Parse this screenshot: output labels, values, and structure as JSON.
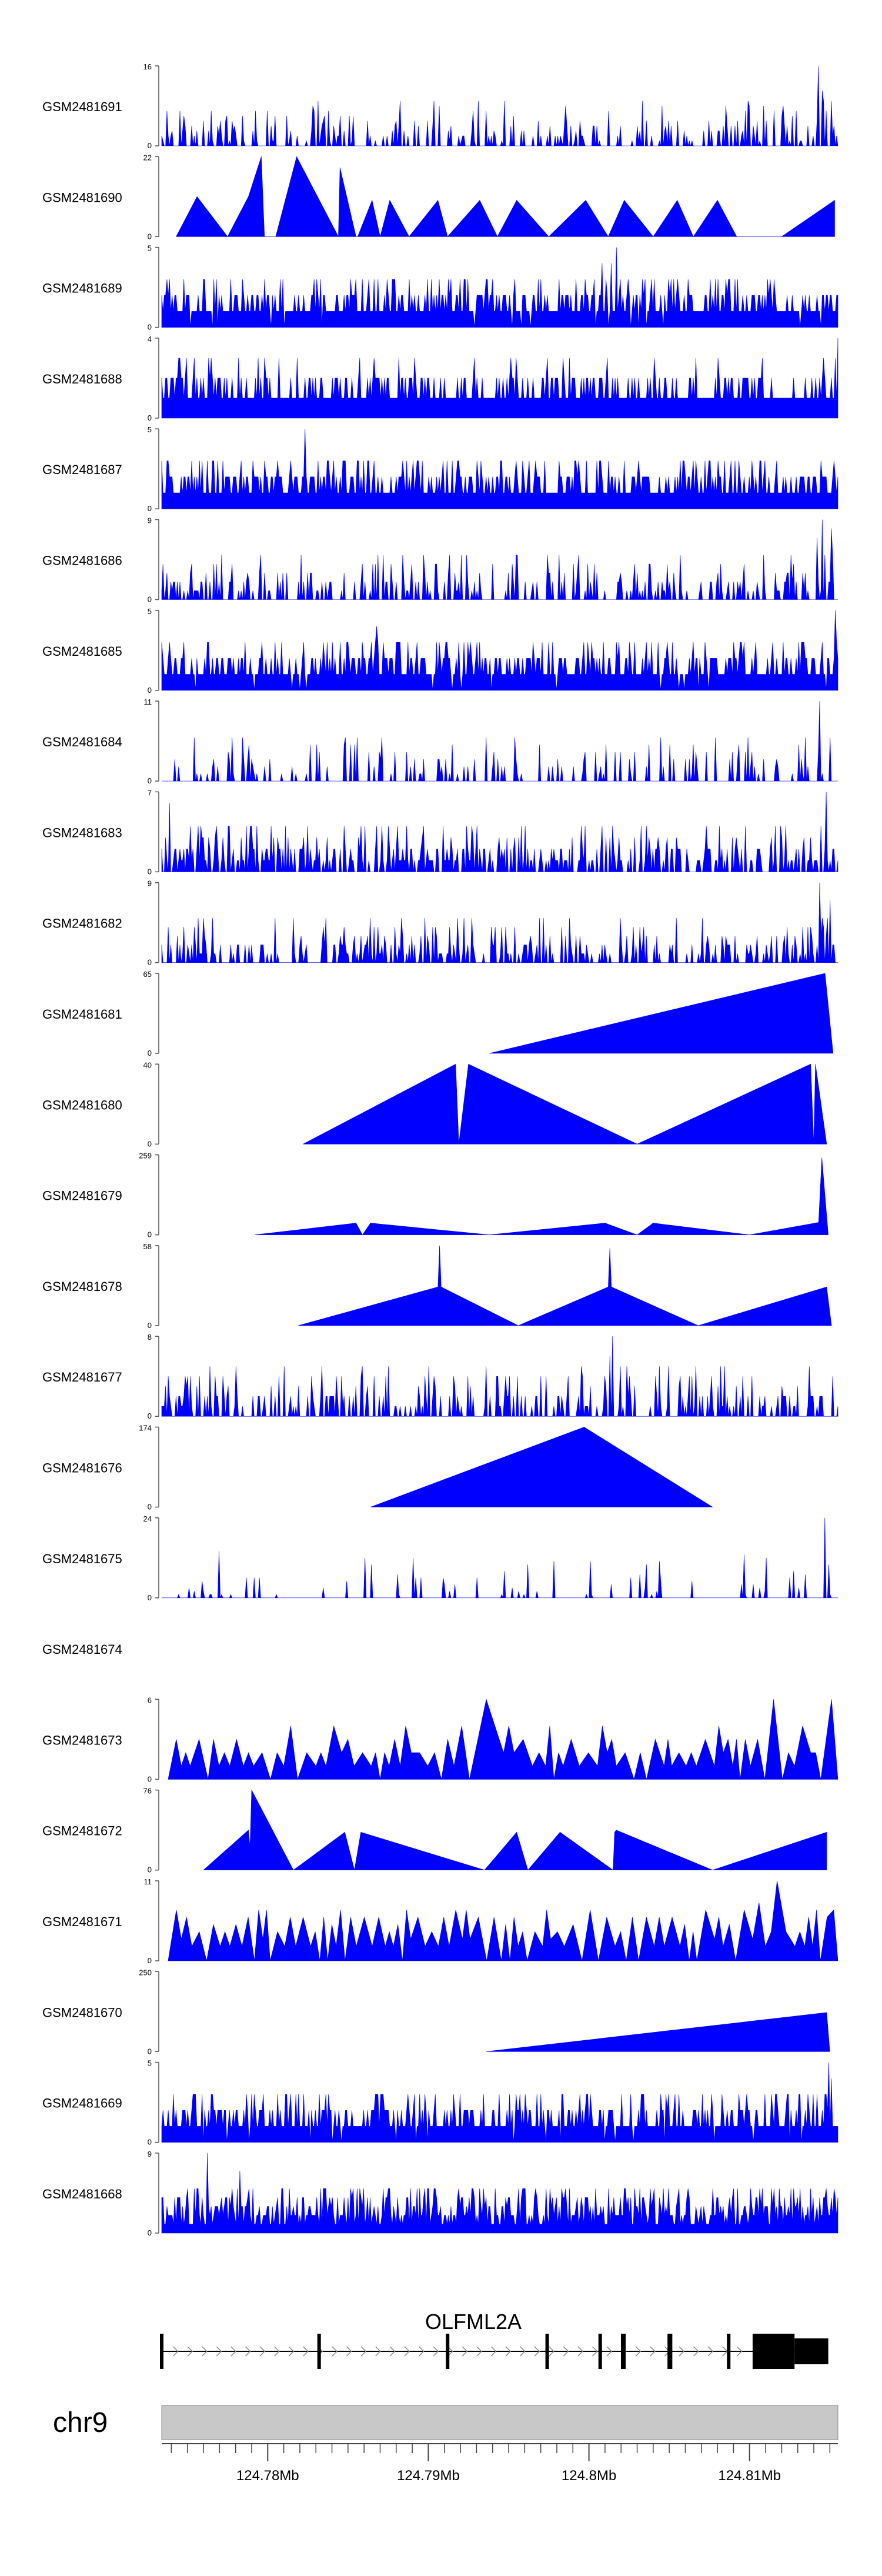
{
  "chart_data": {
    "type": "area",
    "chromosome": "chr9",
    "gene": {
      "name": "OLFML2A",
      "strand": "+",
      "tx_start": 124.7734,
      "tx_end": 124.8149,
      "cds_end": 124.8128,
      "exons": [
        [
          124.7734,
          124.7736
        ],
        [
          124.7832,
          124.7834
        ],
        [
          124.7912,
          124.7914
        ],
        [
          124.7974,
          124.7976
        ],
        [
          124.8007,
          124.8009
        ],
        [
          124.8021,
          124.8024
        ],
        [
          124.805,
          124.8053
        ],
        [
          124.8087,
          124.8089
        ],
        [
          124.8103,
          124.8149
        ]
      ]
    },
    "x_range": [
      124.7734,
      124.8155
    ],
    "x_ticks": [
      124.78,
      124.79,
      124.8,
      124.81
    ],
    "x_tick_labels": [
      "124.78Mb",
      "124.79Mb",
      "124.8Mb",
      "124.81Mb"
    ],
    "tracks": [
      {
        "name": "GSM2481691",
        "ymax": 16,
        "ymin_label": "0",
        "ymax_label": "16",
        "profile": "dense",
        "seed": 11,
        "mean": 0.12,
        "spikes": [
          [
            124.8143,
            16
          ],
          [
            124.8145,
            11
          ],
          [
            124.8146,
            9
          ],
          [
            124.7778,
            5
          ]
        ]
      },
      {
        "name": "GSM2481690",
        "ymax": 22,
        "ymin_label": "0",
        "ymax_label": "22",
        "profile": "sparse",
        "x": [
          124.7743,
          124.7756,
          124.7775,
          124.7788,
          124.7796,
          124.7798,
          124.7805,
          124.7818,
          124.7844,
          124.7845,
          124.7855,
          124.7856,
          124.7865,
          124.787,
          124.7876,
          124.7888,
          124.7906,
          124.7912,
          124.7932,
          124.7943,
          124.7955,
          124.7975,
          124.7998,
          124.8012,
          124.8022,
          124.804,
          124.8055,
          124.8065,
          124.808,
          124.8092,
          124.812,
          124.8153
        ],
        "values": [
          0,
          11,
          0,
          11,
          22,
          0,
          0,
          22,
          0,
          19,
          0,
          0,
          10,
          0,
          10,
          0,
          10,
          0,
          10,
          0,
          10,
          0,
          10,
          0,
          10,
          0,
          10,
          0,
          10,
          0,
          0,
          10
        ]
      },
      {
        "name": "GSM2481689",
        "ymax": 5,
        "ymin_label": "0",
        "ymax_label": "5",
        "profile": "dense",
        "seed": 23,
        "mean": 0.3,
        "spikes": [
          [
            124.8017,
            5
          ],
          [
            124.8008,
            4
          ],
          [
            124.8014,
            4
          ]
        ]
      },
      {
        "name": "GSM2481688",
        "ymax": 4,
        "ymin_label": "0",
        "ymax_label": "4",
        "profile": "dense",
        "seed": 37,
        "mean": 0.35,
        "spikes": [
          [
            124.8155,
            4
          ],
          [
            124.8153,
            3
          ]
        ]
      },
      {
        "name": "GSM2481687",
        "ymax": 5,
        "ymin_label": "0",
        "ymax_label": "5",
        "profile": "dense",
        "seed": 41,
        "mean": 0.35,
        "spikes": [
          [
            124.7823,
            5
          ]
        ]
      },
      {
        "name": "GSM2481686",
        "ymax": 9,
        "ymin_label": "0",
        "ymax_label": "9",
        "profile": "dense",
        "seed": 53,
        "mean": 0.12,
        "spikes": [
          [
            124.8145,
            9
          ],
          [
            124.8151,
            8
          ],
          [
            124.8142,
            7
          ]
        ]
      },
      {
        "name": "GSM2481685",
        "ymax": 5,
        "ymin_label": "0",
        "ymax_label": "5",
        "profile": "dense",
        "seed": 61,
        "mean": 0.3,
        "spikes": [
          [
            124.8153,
            5
          ],
          [
            124.7868,
            4
          ]
        ]
      },
      {
        "name": "GSM2481684",
        "ymax": 11,
        "ymin_label": "0",
        "ymax_label": "11",
        "profile": "dense",
        "seed": 71,
        "mean": 0.08,
        "spikes": [
          [
            124.8144,
            11
          ],
          [
            124.815,
            6
          ]
        ]
      },
      {
        "name": "GSM2481683",
        "ymax": 7,
        "ymin_label": "0",
        "ymax_label": "7",
        "profile": "dense",
        "seed": 79,
        "mean": 0.18,
        "spikes": [
          [
            124.8148,
            7
          ],
          [
            124.7739,
            6
          ],
          [
            124.7787,
            4
          ]
        ]
      },
      {
        "name": "GSM2481682",
        "ymax": 9,
        "ymin_label": "0",
        "ymax_label": "9",
        "profile": "dense",
        "seed": 83,
        "mean": 0.14,
        "spikes": [
          [
            124.8144,
            9
          ],
          [
            124.815,
            7
          ]
        ]
      },
      {
        "name": "GSM2481681",
        "ymax": 65,
        "ymin_label": "0",
        "ymax_label": "65",
        "profile": "sparse",
        "x": [
          124.7938,
          124.8147,
          124.8152
        ],
        "values": [
          0,
          65,
          0
        ]
      },
      {
        "name": "GSM2481680",
        "ymax": 40,
        "ymin_label": "0",
        "ymax_label": "40",
        "profile": "sparse",
        "x": [
          124.7822,
          124.7917,
          124.7919,
          124.7925,
          124.803,
          124.8138,
          124.814,
          124.8141,
          124.8148
        ],
        "values": [
          0,
          40,
          0,
          40,
          0,
          40,
          0,
          40,
          0
        ]
      },
      {
        "name": "GSM2481679",
        "ymax": 259,
        "ymin_label": "0",
        "ymax_label": "259",
        "profile": "sparse",
        "x": [
          124.7792,
          124.7855,
          124.7859,
          124.7864,
          124.7938,
          124.801,
          124.803,
          124.804,
          124.81,
          124.8143,
          124.8145,
          124.8149
        ],
        "values": [
          0,
          38,
          0,
          38,
          0,
          38,
          0,
          38,
          0,
          40,
          250,
          0
        ]
      },
      {
        "name": "GSM2481678",
        "ymax": 58,
        "ymin_label": "0",
        "ymax_label": "58",
        "profile": "sparse",
        "x": [
          124.7819,
          124.7906,
          124.7907,
          124.7908,
          124.7956,
          124.8012,
          124.8013,
          124.8014,
          124.8068,
          124.8148,
          124.8151
        ],
        "values": [
          0,
          28,
          58,
          28,
          0,
          28,
          56,
          28,
          0,
          28,
          0
        ]
      },
      {
        "name": "GSM2481677",
        "ymax": 8,
        "ymin_label": "0",
        "ymax_label": "8",
        "profile": "dense",
        "seed": 97,
        "mean": 0.12,
        "spikes": [
          [
            124.8015,
            8
          ],
          [
            124.7936,
            5
          ],
          [
            124.8013,
            6
          ]
        ]
      },
      {
        "name": "GSM2481676",
        "ymax": 174,
        "ymin_label": "0",
        "ymax_label": "174",
        "profile": "sparse",
        "x": [
          124.7864,
          124.7997,
          124.8077
        ],
        "values": [
          0,
          174,
          0
        ]
      },
      {
        "name": "GSM2481675",
        "ymax": 24,
        "ymin_label": "0",
        "ymax_label": "24",
        "profile": "dense",
        "seed": 101,
        "mean": 0.04,
        "spikes": [
          [
            124.8147,
            24
          ],
          [
            124.8149,
            10
          ]
        ]
      },
      {
        "name": "GSM2481674",
        "ymax": null,
        "profile": "empty"
      },
      {
        "name": "GSM2481673",
        "ymax": 6,
        "ymin_label": "0",
        "ymax_label": "6",
        "profile": "triangles",
        "seed": 13,
        "spikes": [
          [
            124.8116,
            6
          ],
          [
            124.8153,
            6
          ],
          [
            124.7935,
            6
          ]
        ]
      },
      {
        "name": "GSM2481672",
        "ymax": 76,
        "ymin_label": "0",
        "ymax_label": "76",
        "profile": "sparse",
        "x": [
          124.776,
          124.7788,
          124.7789,
          124.779,
          124.7816,
          124.7848,
          124.7854,
          124.7858,
          124.7935,
          124.7955,
          124.7962,
          124.7982,
          124.8015,
          124.8016,
          124.8017,
          124.8077,
          124.8148
        ],
        "values": [
          0,
          38,
          22,
          76,
          0,
          36,
          0,
          36,
          0,
          36,
          0,
          36,
          0,
          36,
          38,
          0,
          36
        ]
      },
      {
        "name": "GSM2481671",
        "ymax": 11,
        "ymin_label": "0",
        "ymax_label": "11",
        "profile": "triangles",
        "seed": 17,
        "spikes": [
          [
            124.8119,
            11
          ],
          [
            124.8104,
            8
          ],
          [
            124.8153,
            7
          ]
        ]
      },
      {
        "name": "GSM2481670",
        "ymax": 250,
        "ymin_label": "0",
        "ymax_label": "250",
        "profile": "sparse",
        "x": [
          124.7936,
          124.8148,
          124.815
        ],
        "values": [
          0,
          122,
          0
        ]
      },
      {
        "name": "GSM2481669",
        "ymax": 5,
        "ymin_label": "0",
        "ymax_label": "5",
        "profile": "dense",
        "seed": 131,
        "mean": 0.3,
        "spikes": [
          [
            124.8149,
            5
          ],
          [
            124.8151,
            4
          ]
        ]
      },
      {
        "name": "GSM2481668",
        "ymax": 9,
        "ymin_label": "0",
        "ymax_label": "9",
        "profile": "dense",
        "seed": 137,
        "mean": 0.4,
        "spikes": [
          [
            124.7762,
            9
          ],
          [
            124.7783,
            7
          ]
        ]
      }
    ]
  },
  "colors": {
    "signal": "#0000ff",
    "axis": "#555555",
    "label": "#222222",
    "ideogram": "#c8c8c8",
    "ideogram_edge": "#888888",
    "gene": "#000000"
  }
}
